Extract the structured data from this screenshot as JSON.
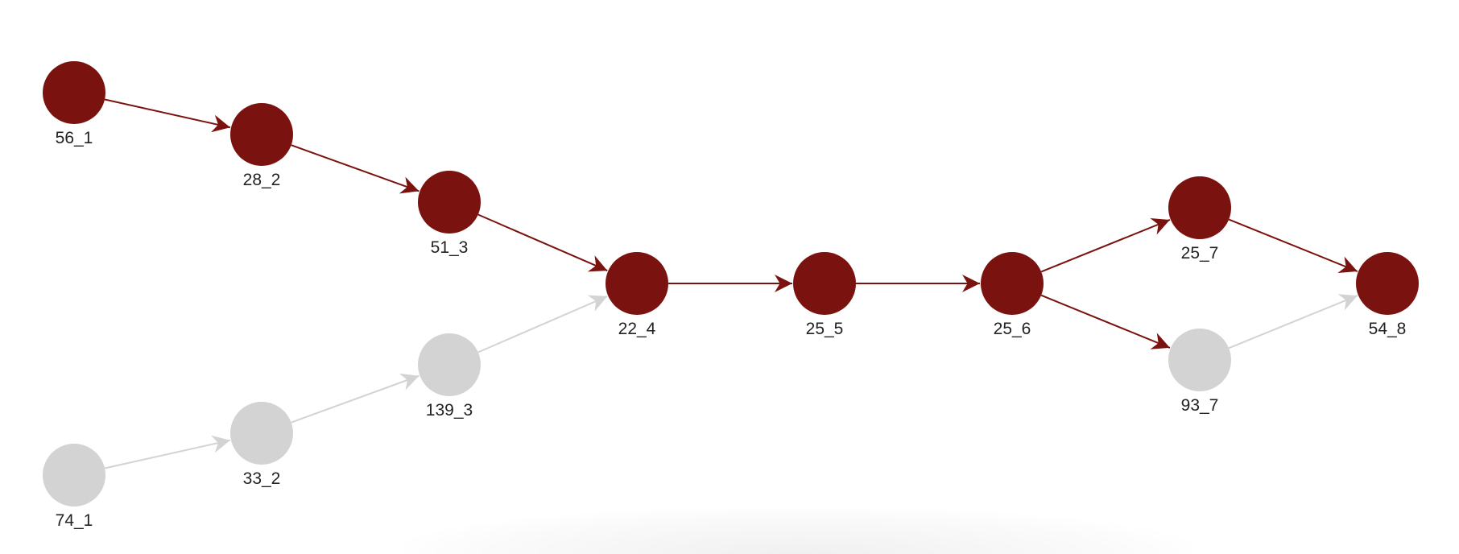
{
  "graph": {
    "colors": {
      "active": "#7a130f",
      "inactive": "#d3d3d3",
      "label": "#222222"
    },
    "nodes": [
      {
        "id": "56_1",
        "label": "56_1",
        "state": "active"
      },
      {
        "id": "28_2",
        "label": "28_2",
        "state": "active"
      },
      {
        "id": "51_3",
        "label": "51_3",
        "state": "active"
      },
      {
        "id": "22_4",
        "label": "22_4",
        "state": "active"
      },
      {
        "id": "25_5",
        "label": "25_5",
        "state": "active"
      },
      {
        "id": "25_6",
        "label": "25_6",
        "state": "active"
      },
      {
        "id": "25_7",
        "label": "25_7",
        "state": "active"
      },
      {
        "id": "54_8",
        "label": "54_8",
        "state": "active"
      },
      {
        "id": "74_1",
        "label": "74_1",
        "state": "inactive"
      },
      {
        "id": "33_2",
        "label": "33_2",
        "state": "inactive"
      },
      {
        "id": "139_3",
        "label": "139_3",
        "state": "inactive"
      },
      {
        "id": "93_7",
        "label": "93_7",
        "state": "inactive"
      }
    ],
    "edges": [
      {
        "from": "56_1",
        "to": "28_2",
        "state": "active"
      },
      {
        "from": "28_2",
        "to": "51_3",
        "state": "active"
      },
      {
        "from": "51_3",
        "to": "22_4",
        "state": "active"
      },
      {
        "from": "22_4",
        "to": "25_5",
        "state": "active"
      },
      {
        "from": "25_5",
        "to": "25_6",
        "state": "active"
      },
      {
        "from": "25_6",
        "to": "25_7",
        "state": "active"
      },
      {
        "from": "25_7",
        "to": "54_8",
        "state": "active"
      },
      {
        "from": "25_6",
        "to": "93_7",
        "state": "active"
      },
      {
        "from": "74_1",
        "to": "33_2",
        "state": "inactive"
      },
      {
        "from": "33_2",
        "to": "139_3",
        "state": "inactive"
      },
      {
        "from": "139_3",
        "to": "22_4",
        "state": "inactive"
      },
      {
        "from": "93_7",
        "to": "54_8",
        "state": "inactive"
      }
    ]
  }
}
